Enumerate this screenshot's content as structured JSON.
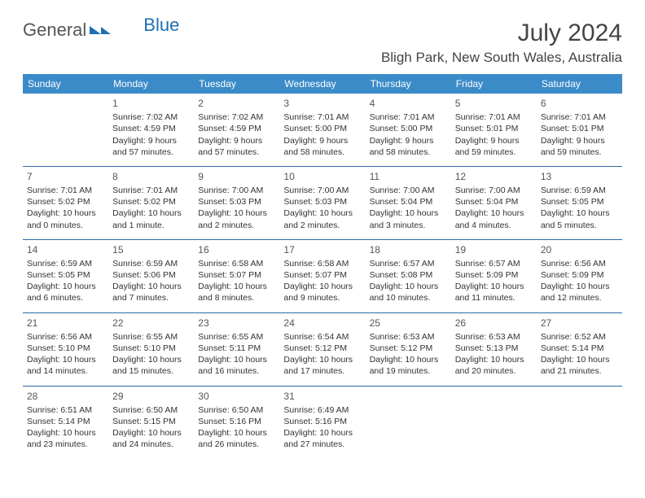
{
  "logo": {
    "text1": "General",
    "text2": "Blue"
  },
  "title": "July 2024",
  "location": "Bligh Park, New South Wales, Australia",
  "header_bg": "#3b8bc9",
  "header_fg": "#ffffff",
  "sep_color": "#2b6aa8",
  "day_headers": [
    "Sunday",
    "Monday",
    "Tuesday",
    "Wednesday",
    "Thursday",
    "Friday",
    "Saturday"
  ],
  "weeks": [
    [
      null,
      {
        "n": "1",
        "sr": "Sunrise: 7:02 AM",
        "ss": "Sunset: 4:59 PM",
        "d1": "Daylight: 9 hours",
        "d2": "and 57 minutes."
      },
      {
        "n": "2",
        "sr": "Sunrise: 7:02 AM",
        "ss": "Sunset: 4:59 PM",
        "d1": "Daylight: 9 hours",
        "d2": "and 57 minutes."
      },
      {
        "n": "3",
        "sr": "Sunrise: 7:01 AM",
        "ss": "Sunset: 5:00 PM",
        "d1": "Daylight: 9 hours",
        "d2": "and 58 minutes."
      },
      {
        "n": "4",
        "sr": "Sunrise: 7:01 AM",
        "ss": "Sunset: 5:00 PM",
        "d1": "Daylight: 9 hours",
        "d2": "and 58 minutes."
      },
      {
        "n": "5",
        "sr": "Sunrise: 7:01 AM",
        "ss": "Sunset: 5:01 PM",
        "d1": "Daylight: 9 hours",
        "d2": "and 59 minutes."
      },
      {
        "n": "6",
        "sr": "Sunrise: 7:01 AM",
        "ss": "Sunset: 5:01 PM",
        "d1": "Daylight: 9 hours",
        "d2": "and 59 minutes."
      }
    ],
    [
      {
        "n": "7",
        "sr": "Sunrise: 7:01 AM",
        "ss": "Sunset: 5:02 PM",
        "d1": "Daylight: 10 hours",
        "d2": "and 0 minutes."
      },
      {
        "n": "8",
        "sr": "Sunrise: 7:01 AM",
        "ss": "Sunset: 5:02 PM",
        "d1": "Daylight: 10 hours",
        "d2": "and 1 minute."
      },
      {
        "n": "9",
        "sr": "Sunrise: 7:00 AM",
        "ss": "Sunset: 5:03 PM",
        "d1": "Daylight: 10 hours",
        "d2": "and 2 minutes."
      },
      {
        "n": "10",
        "sr": "Sunrise: 7:00 AM",
        "ss": "Sunset: 5:03 PM",
        "d1": "Daylight: 10 hours",
        "d2": "and 2 minutes."
      },
      {
        "n": "11",
        "sr": "Sunrise: 7:00 AM",
        "ss": "Sunset: 5:04 PM",
        "d1": "Daylight: 10 hours",
        "d2": "and 3 minutes."
      },
      {
        "n": "12",
        "sr": "Sunrise: 7:00 AM",
        "ss": "Sunset: 5:04 PM",
        "d1": "Daylight: 10 hours",
        "d2": "and 4 minutes."
      },
      {
        "n": "13",
        "sr": "Sunrise: 6:59 AM",
        "ss": "Sunset: 5:05 PM",
        "d1": "Daylight: 10 hours",
        "d2": "and 5 minutes."
      }
    ],
    [
      {
        "n": "14",
        "sr": "Sunrise: 6:59 AM",
        "ss": "Sunset: 5:05 PM",
        "d1": "Daylight: 10 hours",
        "d2": "and 6 minutes."
      },
      {
        "n": "15",
        "sr": "Sunrise: 6:59 AM",
        "ss": "Sunset: 5:06 PM",
        "d1": "Daylight: 10 hours",
        "d2": "and 7 minutes."
      },
      {
        "n": "16",
        "sr": "Sunrise: 6:58 AM",
        "ss": "Sunset: 5:07 PM",
        "d1": "Daylight: 10 hours",
        "d2": "and 8 minutes."
      },
      {
        "n": "17",
        "sr": "Sunrise: 6:58 AM",
        "ss": "Sunset: 5:07 PM",
        "d1": "Daylight: 10 hours",
        "d2": "and 9 minutes."
      },
      {
        "n": "18",
        "sr": "Sunrise: 6:57 AM",
        "ss": "Sunset: 5:08 PM",
        "d1": "Daylight: 10 hours",
        "d2": "and 10 minutes."
      },
      {
        "n": "19",
        "sr": "Sunrise: 6:57 AM",
        "ss": "Sunset: 5:09 PM",
        "d1": "Daylight: 10 hours",
        "d2": "and 11 minutes."
      },
      {
        "n": "20",
        "sr": "Sunrise: 6:56 AM",
        "ss": "Sunset: 5:09 PM",
        "d1": "Daylight: 10 hours",
        "d2": "and 12 minutes."
      }
    ],
    [
      {
        "n": "21",
        "sr": "Sunrise: 6:56 AM",
        "ss": "Sunset: 5:10 PM",
        "d1": "Daylight: 10 hours",
        "d2": "and 14 minutes."
      },
      {
        "n": "22",
        "sr": "Sunrise: 6:55 AM",
        "ss": "Sunset: 5:10 PM",
        "d1": "Daylight: 10 hours",
        "d2": "and 15 minutes."
      },
      {
        "n": "23",
        "sr": "Sunrise: 6:55 AM",
        "ss": "Sunset: 5:11 PM",
        "d1": "Daylight: 10 hours",
        "d2": "and 16 minutes."
      },
      {
        "n": "24",
        "sr": "Sunrise: 6:54 AM",
        "ss": "Sunset: 5:12 PM",
        "d1": "Daylight: 10 hours",
        "d2": "and 17 minutes."
      },
      {
        "n": "25",
        "sr": "Sunrise: 6:53 AM",
        "ss": "Sunset: 5:12 PM",
        "d1": "Daylight: 10 hours",
        "d2": "and 19 minutes."
      },
      {
        "n": "26",
        "sr": "Sunrise: 6:53 AM",
        "ss": "Sunset: 5:13 PM",
        "d1": "Daylight: 10 hours",
        "d2": "and 20 minutes."
      },
      {
        "n": "27",
        "sr": "Sunrise: 6:52 AM",
        "ss": "Sunset: 5:14 PM",
        "d1": "Daylight: 10 hours",
        "d2": "and 21 minutes."
      }
    ],
    [
      {
        "n": "28",
        "sr": "Sunrise: 6:51 AM",
        "ss": "Sunset: 5:14 PM",
        "d1": "Daylight: 10 hours",
        "d2": "and 23 minutes."
      },
      {
        "n": "29",
        "sr": "Sunrise: 6:50 AM",
        "ss": "Sunset: 5:15 PM",
        "d1": "Daylight: 10 hours",
        "d2": "and 24 minutes."
      },
      {
        "n": "30",
        "sr": "Sunrise: 6:50 AM",
        "ss": "Sunset: 5:16 PM",
        "d1": "Daylight: 10 hours",
        "d2": "and 26 minutes."
      },
      {
        "n": "31",
        "sr": "Sunrise: 6:49 AM",
        "ss": "Sunset: 5:16 PM",
        "d1": "Daylight: 10 hours",
        "d2": "and 27 minutes."
      },
      null,
      null,
      null
    ]
  ]
}
